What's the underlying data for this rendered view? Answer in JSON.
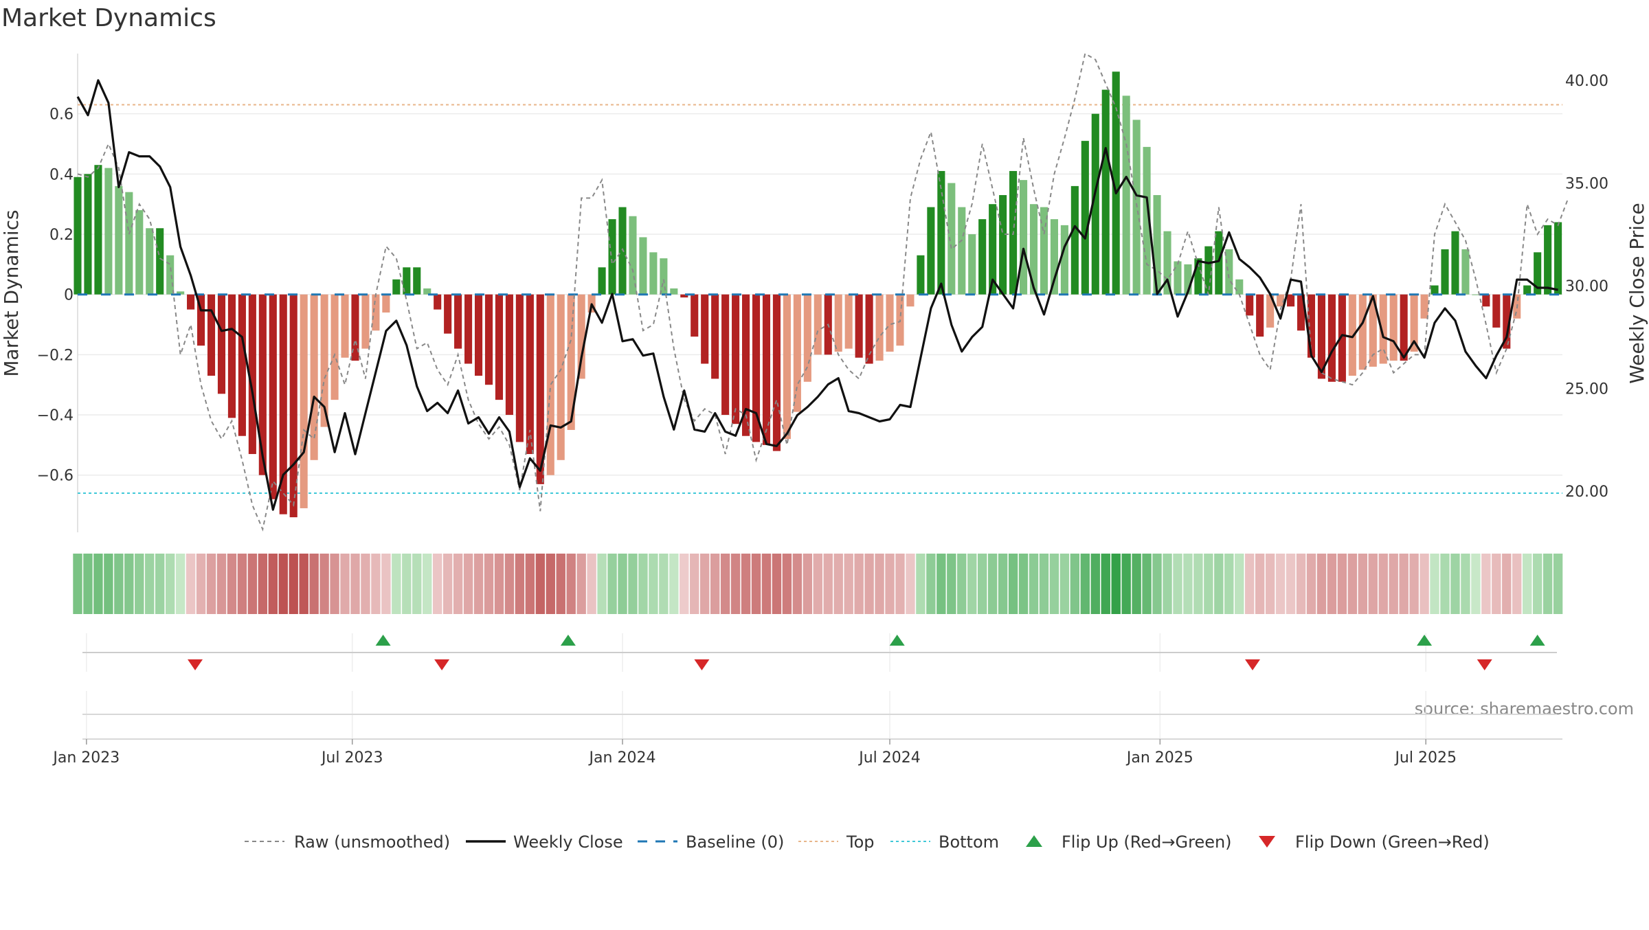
{
  "title": "Market Dynamics",
  "source": "source: sharemaestro.com",
  "colors": {
    "strong_green": "#228B22",
    "light_green": "#7CBF7C",
    "strong_red": "#B22222",
    "light_red": "#E59A80",
    "raw_line": "#888888",
    "close_line": "#111111",
    "baseline": "#1F77B4",
    "top": "#E8B58A",
    "bottom": "#3FC8D8",
    "flip_up": "#2CA04A",
    "flip_down": "#D62728",
    "grid": "#EBEBEB"
  },
  "chart_data": {
    "type": "bar",
    "title": "Market Dynamics",
    "ylabel": "Market Dynamics",
    "y2label": "Weekly Close Price",
    "ylim": [
      -0.79,
      0.8
    ],
    "y2lim": [
      18.0,
      41.3
    ],
    "yticks": [
      0.6,
      0.4,
      0.2,
      0,
      -0.2,
      -0.4,
      -0.6
    ],
    "ytick_labels": [
      "0.6",
      "0.4",
      "0.2",
      "0",
      "−0.2",
      "−0.4",
      "−0.6"
    ],
    "y2ticks": [
      40.0,
      35.0,
      30.0,
      25.0,
      20.0
    ],
    "y2tick_labels": [
      "40.00",
      "35.00",
      "30.00",
      "25.00",
      "20.00"
    ],
    "x_start": "2022-12-26",
    "x_end": "2025-10-02",
    "week_start": "2022-12-26",
    "xticks": [
      "2023-01-01",
      "2023-07-01",
      "2024-01-01",
      "2024-07-01",
      "2025-01-01",
      "2025-07-01"
    ],
    "xtick_labels": [
      "Jan 2023",
      "Jul 2023",
      "Jan 2024",
      "Jul 2024",
      "Jan 2025",
      "Jul 2025"
    ],
    "top_line": 0.63,
    "bottom_line": -0.66,
    "baseline": 0,
    "grid": true,
    "legend_placement": "bottom",
    "momentum": [
      0.39,
      0.4,
      0.43,
      0.42,
      0.36,
      0.34,
      0.28,
      0.22,
      0.22,
      0.13,
      0.01,
      -0.05,
      -0.17,
      -0.27,
      -0.33,
      -0.41,
      -0.47,
      -0.53,
      -0.6,
      -0.68,
      -0.73,
      -0.74,
      -0.71,
      -0.55,
      -0.44,
      -0.35,
      -0.21,
      -0.22,
      -0.18,
      -0.12,
      -0.06,
      0.05,
      0.09,
      0.09,
      0.02,
      -0.05,
      -0.13,
      -0.18,
      -0.23,
      -0.27,
      -0.3,
      -0.35,
      -0.4,
      -0.49,
      -0.53,
      -0.63,
      -0.6,
      -0.55,
      -0.45,
      -0.28,
      -0.06,
      0.09,
      0.25,
      0.29,
      0.26,
      0.19,
      0.14,
      0.12,
      0.02,
      -0.01,
      -0.14,
      -0.23,
      -0.28,
      -0.4,
      -0.43,
      -0.47,
      -0.49,
      -0.5,
      -0.52,
      -0.48,
      -0.39,
      -0.29,
      -0.2,
      -0.2,
      -0.19,
      -0.18,
      -0.21,
      -0.23,
      -0.22,
      -0.19,
      -0.17,
      -0.04,
      0.13,
      0.29,
      0.41,
      0.37,
      0.29,
      0.2,
      0.25,
      0.3,
      0.33,
      0.41,
      0.38,
      0.3,
      0.29,
      0.25,
      0.23,
      0.36,
      0.51,
      0.6,
      0.68,
      0.74,
      0.66,
      0.58,
      0.49,
      0.33,
      0.21,
      0.11,
      0.1,
      0.12,
      0.16,
      0.21,
      0.15,
      0.05,
      -0.07,
      -0.14,
      -0.11,
      -0.04,
      -0.04,
      -0.12,
      -0.21,
      -0.28,
      -0.29,
      -0.29,
      -0.27,
      -0.25,
      -0.24,
      -0.23,
      -0.22,
      -0.22,
      -0.19,
      -0.08,
      0.03,
      0.15,
      0.21,
      0.15,
      0.0,
      -0.04,
      -0.11,
      -0.18,
      -0.08,
      0.03,
      0.14,
      0.23,
      0.24
    ],
    "series": [
      {
        "name": "Raw (unsmoothed)",
        "values": [
          0.4,
          0.39,
          0.42,
          0.5,
          0.42,
          0.2,
          0.3,
          0.25,
          0.12,
          0.1,
          -0.2,
          -0.1,
          -0.3,
          -0.42,
          -0.48,
          -0.42,
          -0.55,
          -0.7,
          -0.78,
          -0.62,
          -0.66,
          -0.7,
          -0.45,
          -0.48,
          -0.28,
          -0.2,
          -0.3,
          -0.15,
          -0.28,
          0.0,
          0.16,
          0.12,
          -0.02,
          -0.18,
          -0.16,
          -0.25,
          -0.3,
          -0.2,
          -0.35,
          -0.43,
          -0.48,
          -0.44,
          -0.5,
          -0.65,
          -0.45,
          -0.72,
          -0.3,
          -0.25,
          -0.15,
          0.32,
          0.32,
          0.38,
          0.1,
          0.15,
          0.08,
          -0.12,
          -0.1,
          0.05,
          -0.18,
          -0.35,
          -0.42,
          -0.38,
          -0.4,
          -0.53,
          -0.38,
          -0.4,
          -0.55,
          -0.45,
          -0.35,
          -0.5,
          -0.3,
          -0.24,
          -0.12,
          -0.1,
          -0.2,
          -0.25,
          -0.28,
          -0.2,
          -0.14,
          -0.1,
          -0.09,
          0.32,
          0.45,
          0.54,
          0.35,
          0.15,
          0.18,
          0.3,
          0.5,
          0.35,
          0.2,
          0.2,
          0.52,
          0.35,
          0.2,
          0.4,
          0.52,
          0.65,
          0.8,
          0.78,
          0.7,
          0.62,
          0.5,
          0.3,
          0.1,
          0.08,
          0.05,
          0.1,
          0.21,
          0.1,
          0.0,
          0.29,
          0.05,
          0.0,
          -0.1,
          -0.2,
          -0.25,
          -0.05,
          0.05,
          0.3,
          -0.2,
          -0.26,
          -0.28,
          -0.29,
          -0.3,
          -0.26,
          -0.2,
          -0.18,
          -0.26,
          -0.23,
          -0.2,
          -0.2,
          0.2,
          0.3,
          0.24,
          0.18,
          0.05,
          -0.1,
          -0.26,
          -0.18,
          -0.05,
          0.3,
          0.2,
          0.25,
          0.23,
          0.32
        ]
      },
      {
        "name": "Weekly Close",
        "values": [
          39.2,
          38.3,
          40.0,
          38.9,
          34.8,
          36.5,
          36.3,
          36.3,
          35.8,
          34.8,
          31.9,
          30.5,
          28.8,
          28.8,
          27.8,
          27.9,
          27.5,
          24.8,
          21.7,
          19.1,
          20.8,
          21.3,
          21.9,
          24.6,
          24.1,
          21.9,
          23.8,
          21.8,
          23.8,
          25.8,
          27.8,
          28.3,
          27.1,
          25.1,
          23.9,
          24.3,
          23.8,
          24.9,
          23.3,
          23.6,
          22.8,
          23.6,
          22.9,
          20.2,
          21.6,
          21.0,
          23.2,
          23.1,
          23.4,
          26.5,
          29.1,
          28.2,
          29.6,
          27.3,
          27.4,
          26.6,
          26.7,
          24.6,
          23.0,
          24.9,
          23.0,
          22.9,
          23.8,
          22.9,
          22.7,
          24.0,
          23.8,
          22.3,
          22.2,
          22.8,
          23.7,
          24.1,
          24.6,
          25.2,
          25.5,
          23.9,
          23.8,
          23.6,
          23.4,
          23.5,
          24.2,
          24.1,
          26.5,
          28.9,
          30.1,
          28.1,
          26.8,
          27.5,
          28.0,
          30.3,
          29.6,
          28.9,
          31.8,
          29.9,
          28.6,
          30.3,
          31.9,
          32.9,
          32.3,
          34.6,
          36.7,
          34.5,
          35.3,
          34.4,
          34.3,
          29.6,
          30.3,
          28.5,
          29.7,
          31.2,
          31.1,
          31.2,
          32.6,
          31.3,
          30.9,
          30.4,
          29.6,
          28.4,
          30.3,
          30.2,
          26.6,
          25.8,
          26.8,
          27.6,
          27.5,
          28.2,
          29.5,
          27.5,
          27.3,
          26.5,
          27.3,
          26.5,
          28.2,
          28.9,
          28.3,
          26.8,
          26.1,
          25.5,
          26.6,
          27.5,
          30.3,
          30.3,
          29.9,
          29.9,
          29.8
        ]
      },
      {
        "name": "Baseline (0)",
        "values": [
          0
        ]
      },
      {
        "name": "Top",
        "values": [
          0.63
        ]
      },
      {
        "name": "Bottom",
        "values": [
          -0.66
        ]
      },
      {
        "name": "Flip Up (Red→Green)",
        "dates": [
          "2023-07-22",
          "2023-11-25",
          "2024-07-06",
          "2025-06-30",
          "2025-09-15"
        ]
      },
      {
        "name": "Flip Down (Green→Red)",
        "dates": [
          "2023-03-16",
          "2023-08-31",
          "2024-02-24",
          "2025-03-05",
          "2025-08-10"
        ]
      }
    ]
  }
}
